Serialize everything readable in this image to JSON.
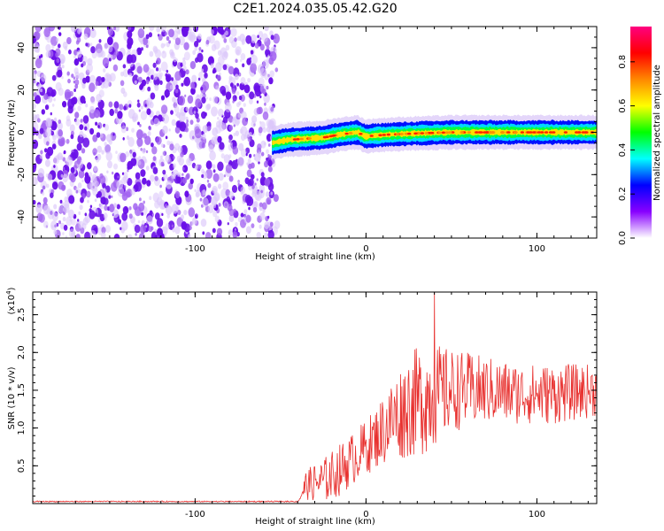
{
  "title": "C2E1.2024.035.05.42.G20",
  "colors": {
    "snr_line": "#e8312f",
    "noise_purple": "#7a2ee8",
    "axis": "#000000"
  },
  "chart_data": [
    {
      "type": "heatmap",
      "xlabel": "Height of straight line (km)",
      "ylabel": "Frequency (Hz)",
      "xlim": [
        -195,
        135
      ],
      "ylim": [
        -50,
        50
      ],
      "xticks": [
        -100,
        0,
        100
      ],
      "yticks": [
        -40,
        -20,
        0,
        20,
        40
      ],
      "colorbar": {
        "label": "Normalized spectral amplitude",
        "range": [
          0,
          0.96
        ],
        "ticks": [
          "0.0",
          "0.2",
          "0.4",
          "0.6",
          "0.8"
        ],
        "colormap": [
          "#ffffff",
          "#8800ff",
          "#0000ff",
          "#00ffff",
          "#00ff00",
          "#ffff00",
          "#ff8800",
          "#ff0000",
          "#ff0080"
        ]
      },
      "features": {
        "noise_region_x": [
          -195,
          -55
        ],
        "signal_start_x": -55,
        "signal_trace": {
          "x": [
            -55,
            -45,
            -35,
            -25,
            -15,
            -5,
            0,
            5,
            15,
            30,
            50,
            70,
            90,
            110,
            135
          ],
          "frequency": [
            -5,
            -3.5,
            -3,
            -2.5,
            -1,
            0,
            -2,
            -1.5,
            -1,
            -0.5,
            0,
            0,
            0,
            0,
            0
          ]
        }
      }
    },
    {
      "type": "line",
      "xlabel": "Height of straight line (km)",
      "ylabel": "SNR (10 * v/v)",
      "y_multiplier": "(x10",
      "y_multiplier_exp": "4",
      "xlim": [
        -195,
        135
      ],
      "ylim": [
        0,
        2.8
      ],
      "xticks": [
        -100,
        0,
        100
      ],
      "yticks": [
        "0.5",
        "1.0",
        "1.5",
        "2.0",
        "2.5"
      ],
      "series": [
        {
          "envelope": {
            "x": [
              -195,
              -40,
              -35,
              -25,
              -15,
              -5,
              5,
              15,
              25,
              35,
              50,
              70,
              90,
              110,
              135
            ],
            "mean": [
              0.02,
              0.02,
              0.25,
              0.3,
              0.45,
              0.65,
              0.85,
              1.1,
              1.3,
              1.4,
              1.5,
              1.5,
              1.45,
              1.45,
              1.5
            ],
            "spread": [
              0.01,
              0.02,
              0.2,
              0.3,
              0.35,
              0.35,
              0.4,
              0.55,
              0.7,
              0.75,
              0.55,
              0.45,
              0.4,
              0.4,
              0.35
            ]
          },
          "peak": {
            "x": 40,
            "y": 2.8
          }
        }
      ]
    }
  ]
}
